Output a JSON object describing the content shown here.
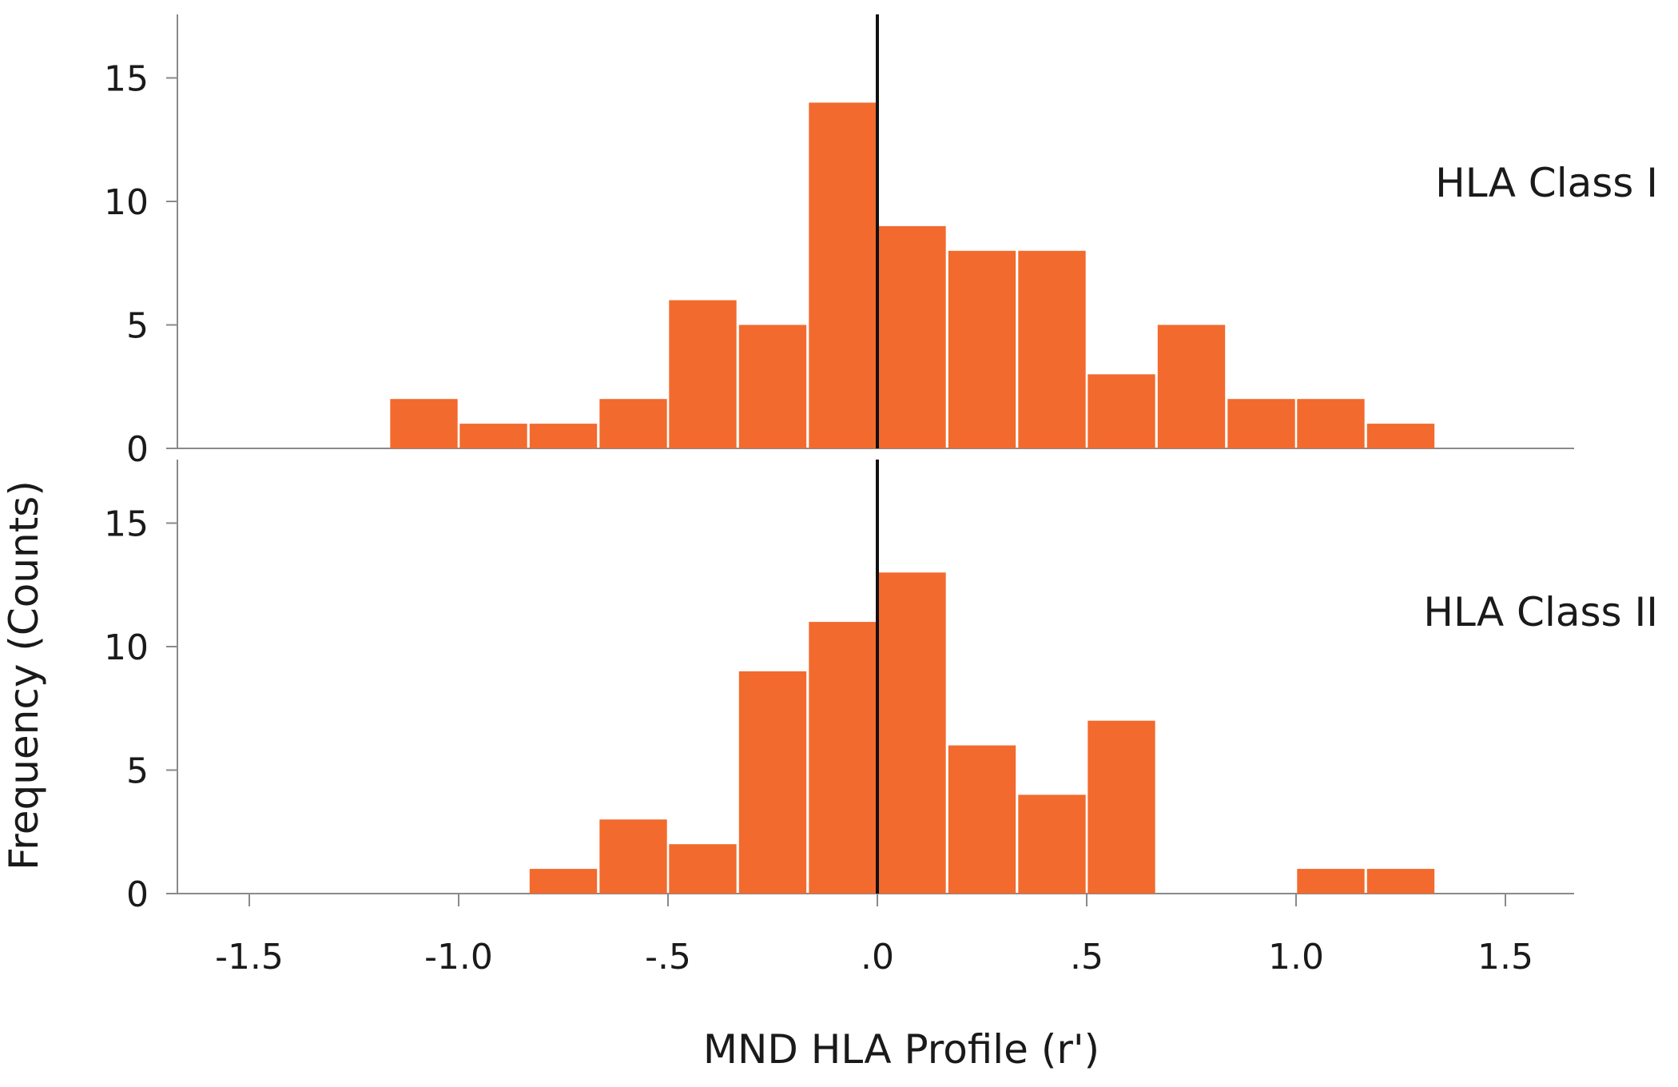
{
  "chart_data": {
    "type": "bar",
    "subtype": "histogram",
    "xlabel": "MND HLA Profile (r')",
    "ylabel": "Frequency (Counts)",
    "xlim": [
      -1.67,
      1.67
    ],
    "ylim": [
      0,
      17.5
    ],
    "x_ticks": [
      -1.5,
      -1.0,
      -0.5,
      0.0,
      0.5,
      1.0,
      1.5
    ],
    "x_tick_labels": [
      "-1.5",
      "-1.0",
      "-.5",
      ".0",
      ".5",
      "1.0",
      "1.5"
    ],
    "y_ticks": [
      0,
      5,
      10,
      15
    ],
    "y_tick_labels": [
      "0",
      "5",
      "10",
      "15"
    ],
    "bin_width": 0.1667,
    "bin_centers": [
      -1.083,
      -0.917,
      -0.75,
      -0.583,
      -0.417,
      -0.25,
      -0.083,
      0.083,
      0.25,
      0.417,
      0.583,
      0.75,
      0.917,
      1.083,
      1.25
    ],
    "reference_line_x": 0.0,
    "bar_color": "#f26a2e",
    "line_color": "#111111",
    "series": [
      {
        "name": "HLA Class I",
        "values": [
          2,
          1,
          1,
          2,
          6,
          5,
          14,
          9,
          8,
          8,
          3,
          5,
          2,
          2,
          1
        ]
      },
      {
        "name": "HLA Class II",
        "values": [
          0,
          0,
          1,
          3,
          2,
          9,
          11,
          13,
          6,
          4,
          7,
          0,
          0,
          1,
          1
        ]
      }
    ],
    "grid": false,
    "legend": "none"
  }
}
